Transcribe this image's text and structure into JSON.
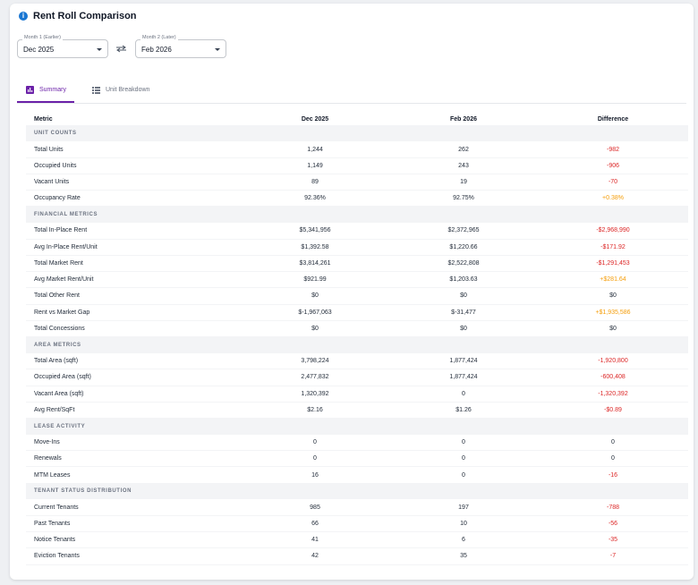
{
  "header": {
    "title": "Rent Roll Comparison"
  },
  "month1": {
    "label": "Month 1 (Earlier)",
    "value": "Dec 2025"
  },
  "month2": {
    "label": "Month 2 (Later)",
    "value": "Feb 2026"
  },
  "tabs": [
    {
      "label": "Summary",
      "active": true,
      "icon": "bar-chart-icon"
    },
    {
      "label": "Unit Breakdown",
      "active": false,
      "icon": "list-icon"
    }
  ],
  "table": {
    "headers": {
      "metric": "Metric",
      "m1": "Dec 2025",
      "m2": "Feb 2026",
      "diff": "Difference"
    },
    "sections": [
      {
        "title": "UNIT COUNTS",
        "rows": [
          {
            "metric": "Total Units",
            "m1": "1,244",
            "m2": "262",
            "diff": "-982",
            "dir": "neg"
          },
          {
            "metric": "Occupied Units",
            "m1": "1,149",
            "m2": "243",
            "diff": "-906",
            "dir": "neg"
          },
          {
            "metric": "Vacant Units",
            "m1": "89",
            "m2": "19",
            "diff": "-70",
            "dir": "neg"
          },
          {
            "metric": "Occupancy Rate",
            "m1": "92.36%",
            "m2": "92.75%",
            "diff": "+0.38%",
            "dir": "pos"
          }
        ]
      },
      {
        "title": "FINANCIAL METRICS",
        "rows": [
          {
            "metric": "Total In-Place Rent",
            "m1": "$5,341,956",
            "m2": "$2,372,965",
            "diff": "-$2,968,990",
            "dir": "neg"
          },
          {
            "metric": "Avg In-Place Rent/Unit",
            "m1": "$1,392.58",
            "m2": "$1,220.66",
            "diff": "-$171.92",
            "dir": "neg"
          },
          {
            "metric": "Total Market Rent",
            "m1": "$3,814,261",
            "m2": "$2,522,808",
            "diff": "-$1,291,453",
            "dir": "neg"
          },
          {
            "metric": "Avg Market Rent/Unit",
            "m1": "$921.99",
            "m2": "$1,203.63",
            "diff": "+$281.64",
            "dir": "pos"
          },
          {
            "metric": "Total Other Rent",
            "m1": "$0",
            "m2": "$0",
            "diff": "$0",
            "dir": "zero"
          },
          {
            "metric": "Rent vs Market Gap",
            "m1": "$-1,967,063",
            "m2": "$-31,477",
            "diff": "+$1,935,586",
            "dir": "pos"
          },
          {
            "metric": "Total Concessions",
            "m1": "$0",
            "m2": "$0",
            "diff": "$0",
            "dir": "zero"
          }
        ]
      },
      {
        "title": "AREA METRICS",
        "rows": [
          {
            "metric": "Total Area (sqft)",
            "m1": "3,798,224",
            "m2": "1,877,424",
            "diff": "-1,920,800",
            "dir": "neg"
          },
          {
            "metric": "Occupied Area (sqft)",
            "m1": "2,477,832",
            "m2": "1,877,424",
            "diff": "-600,408",
            "dir": "neg"
          },
          {
            "metric": "Vacant Area (sqft)",
            "m1": "1,320,392",
            "m2": "0",
            "diff": "-1,320,392",
            "dir": "neg"
          },
          {
            "metric": "Avg Rent/SqFt",
            "m1": "$2.16",
            "m2": "$1.26",
            "diff": "-$0.89",
            "dir": "neg"
          }
        ]
      },
      {
        "title": "LEASE ACTIVITY",
        "rows": [
          {
            "metric": "Move-Ins",
            "m1": "0",
            "m2": "0",
            "diff": "0",
            "dir": "zero"
          },
          {
            "metric": "Renewals",
            "m1": "0",
            "m2": "0",
            "diff": "0",
            "dir": "zero"
          },
          {
            "metric": "MTM Leases",
            "m1": "16",
            "m2": "0",
            "diff": "-16",
            "dir": "neg"
          }
        ]
      },
      {
        "title": "TENANT STATUS DISTRIBUTION",
        "rows": [
          {
            "metric": "Current Tenants",
            "m1": "985",
            "m2": "197",
            "diff": "-788",
            "dir": "neg"
          },
          {
            "metric": "Past Tenants",
            "m1": "66",
            "m2": "10",
            "diff": "-56",
            "dir": "neg"
          },
          {
            "metric": "Notice Tenants",
            "m1": "41",
            "m2": "6",
            "diff": "-35",
            "dir": "neg"
          },
          {
            "metric": "Eviction Tenants",
            "m1": "42",
            "m2": "35",
            "diff": "-7",
            "dir": "neg"
          }
        ]
      }
    ]
  },
  "colors": {
    "accent": "#6b21a8",
    "negative": "#dc2626",
    "positive": "#f59e0b",
    "info": "#1976d2"
  }
}
